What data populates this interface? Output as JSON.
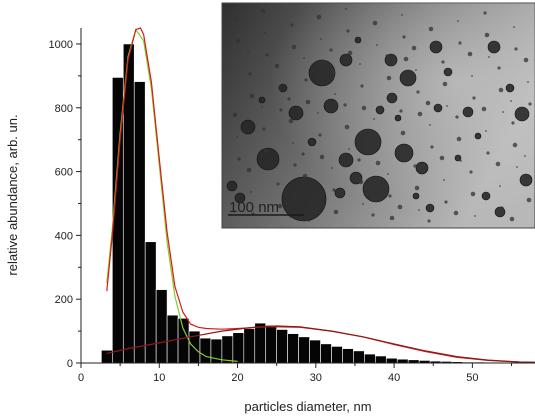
{
  "chart_data": {
    "type": "bar",
    "xlabel": "particles diameter, nm",
    "ylabel": "relative abundance, arb. un.",
    "xlim": [
      0,
      58
    ],
    "ylim": [
      0,
      1050
    ],
    "xticks": [
      0,
      10,
      20,
      30,
      40,
      50
    ],
    "yticks": [
      0,
      200,
      400,
      600,
      800,
      1000
    ],
    "bin_width": 1.4,
    "bars": {
      "centers": [
        3.3,
        4.7,
        6.1,
        7.5,
        8.9,
        10.3,
        11.7,
        13.1,
        14.5,
        15.9,
        17.3,
        18.7,
        20.1,
        21.5,
        22.9,
        24.3,
        25.7,
        27.1,
        28.5,
        29.9,
        31.3,
        32.7,
        34.1,
        35.5,
        36.9,
        38.3,
        39.7,
        41.1,
        42.5,
        43.9,
        45.3,
        46.7,
        48.1,
        49.5,
        50.9,
        52.3,
        53.7,
        55.1,
        56.5
      ],
      "values": [
        40,
        895,
        1000,
        882,
        380,
        230,
        150,
        140,
        100,
        78,
        75,
        85,
        95,
        108,
        125,
        118,
        105,
        92,
        82,
        72,
        60,
        52,
        45,
        38,
        28,
        22,
        15,
        12,
        10,
        8,
        6,
        5,
        4,
        3,
        3,
        2,
        2,
        2,
        2
      ]
    },
    "series": [
      {
        "color": "#7fce2a",
        "x": [
          3.3,
          4,
          5,
          6,
          7,
          8,
          9,
          10,
          11,
          12,
          13,
          14,
          15,
          16,
          18,
          20
        ],
        "y": [
          250,
          420,
          720,
          960,
          1045,
          1010,
          860,
          620,
          380,
          210,
          110,
          60,
          35,
          20,
          10,
          5
        ]
      },
      {
        "color": "#d81b1b",
        "x": [
          3.3,
          4,
          5,
          6,
          7,
          7.6,
          8,
          9,
          10,
          11,
          12,
          13,
          14,
          15,
          16,
          18,
          20,
          24,
          28,
          32,
          36,
          40,
          44,
          48,
          52,
          56,
          58
        ],
        "y": [
          225,
          400,
          700,
          950,
          1045,
          1050,
          1030,
          880,
          640,
          410,
          240,
          160,
          122,
          112,
          108,
          106,
          108,
          114,
          112,
          100,
          82,
          58,
          36,
          18,
          8,
          3,
          2
        ]
      },
      {
        "color": "#8b1a1a",
        "x": [
          3.3,
          6,
          10,
          14,
          18,
          22,
          25,
          28,
          32,
          36,
          40,
          44,
          48,
          52,
          56,
          58
        ],
        "y": [
          30,
          45,
          63,
          82,
          100,
          112,
          116,
          113,
          100,
          82,
          60,
          38,
          20,
          9,
          3,
          2
        ]
      }
    ],
    "inset": {
      "scale_bar_label": "100 nm"
    }
  }
}
